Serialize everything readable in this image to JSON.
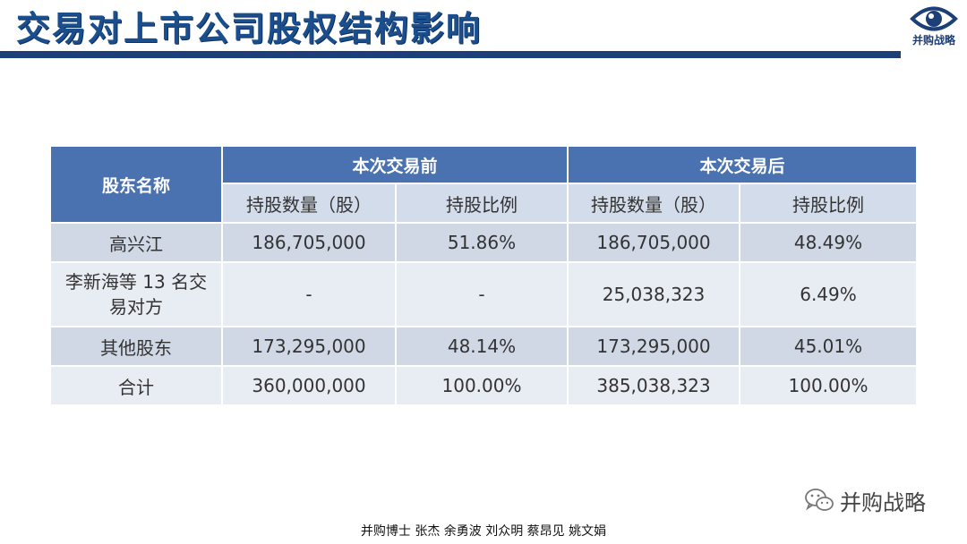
{
  "page": {
    "title": "交易对上市公司股权结构影响"
  },
  "logo": {
    "icon": "eye-icon",
    "text": "并购战略"
  },
  "table": {
    "col_header_name": "股东名称",
    "group_before": "本次交易前",
    "group_after": "本次交易后",
    "sub_headers": [
      "持股数量（股）",
      "持股比例",
      "持股数量（股）",
      "持股比例"
    ],
    "rows": [
      {
        "name": "高兴江",
        "before_qty": "186,705,000",
        "before_pct": "51.86%",
        "after_qty": "186,705,000",
        "after_pct": "48.49%"
      },
      {
        "name": "李新海等 13 名交易对方",
        "before_qty": "-",
        "before_pct": "-",
        "after_qty": "25,038,323",
        "after_pct": "6.49%"
      },
      {
        "name": "其他股东",
        "before_qty": "173,295,000",
        "before_pct": "48.14%",
        "after_qty": "173,295,000",
        "after_pct": "45.01%"
      },
      {
        "name": "合计",
        "before_qty": "360,000,000",
        "before_pct": "100.00%",
        "after_qty": "385,038,323",
        "after_pct": "100.00%"
      }
    ]
  },
  "watermark": {
    "icon": "wechat-icon",
    "text": "并购战略"
  },
  "footer": {
    "authors": "并购博士 张杰  余勇波  刘众明  蔡昂见  姚文娟"
  },
  "colors": {
    "title": "#1b4e8c",
    "rule": "#1d3f77",
    "header": "#4a72b0",
    "row_dark": "#d0d8e6",
    "row_light": "#e8ecf3"
  }
}
